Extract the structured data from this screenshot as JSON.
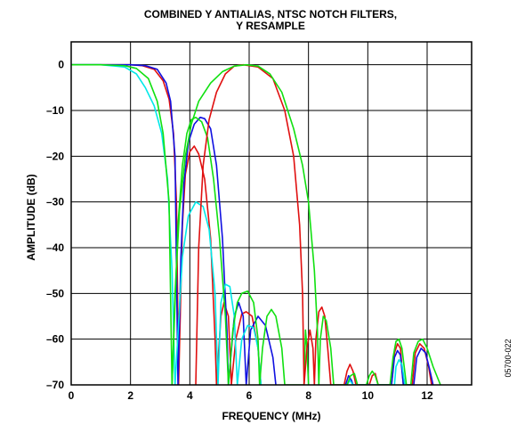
{
  "chart_data": {
    "type": "line",
    "title_lines": [
      "COMBINED Y ANTIALIAS, NTSC NOTCH FILTERS,",
      "Y RESAMPLE"
    ],
    "xlabel": "FREQUENCY (MHz)",
    "ylabel": "AMPLITUDE (dB)",
    "xlim": [
      0,
      13.5
    ],
    "ylim": [
      -70,
      5
    ],
    "xticks": [
      0,
      2,
      4,
      6,
      8,
      10,
      12
    ],
    "xtick_labels": [
      "0",
      "2",
      "4",
      "6",
      "8",
      "10",
      "12"
    ],
    "yticks": [
      0,
      -10,
      -20,
      -30,
      -40,
      -50,
      -60,
      -70
    ],
    "ytick_labels": [
      "0",
      "–10",
      "–20",
      "–30",
      "–40",
      "–50",
      "–60",
      "–70"
    ],
    "grid": true,
    "figure_id": "05700-022",
    "series": [
      {
        "color": "#e01010",
        "points": [
          [
            0,
            0
          ],
          [
            1,
            0
          ],
          [
            2,
            0
          ],
          [
            2.4,
            -0.2
          ],
          [
            2.8,
            -1
          ],
          [
            3.1,
            -3.5
          ],
          [
            3.3,
            -7.5
          ],
          [
            3.45,
            -15
          ],
          [
            3.55,
            -30
          ],
          [
            3.62,
            -70
          ],
          [
            3.75,
            -35
          ],
          [
            3.85,
            -24
          ],
          [
            4,
            -19
          ],
          [
            4.15,
            -17.8
          ],
          [
            4.3,
            -19.5
          ],
          [
            4.5,
            -25
          ],
          [
            4.7,
            -38
          ],
          [
            4.85,
            -60
          ],
          [
            4.9,
            -70
          ],
          [
            5.05,
            -55
          ],
          [
            5.15,
            -52
          ],
          [
            5.3,
            -55
          ],
          [
            5.4,
            -70
          ],
          [
            5.55,
            -60
          ],
          [
            5.75,
            -54.5
          ],
          [
            5.9,
            -54
          ],
          [
            6.1,
            -55
          ],
          [
            6.3,
            -62
          ],
          [
            6.4,
            -70
          ]
        ]
      },
      {
        "color": "#1010e0",
        "points": [
          [
            0,
            0
          ],
          [
            1,
            0
          ],
          [
            2,
            0
          ],
          [
            2.5,
            -0.2
          ],
          [
            2.9,
            -1
          ],
          [
            3.2,
            -4
          ],
          [
            3.35,
            -8
          ],
          [
            3.5,
            -20
          ],
          [
            3.6,
            -70
          ],
          [
            3.7,
            -42
          ],
          [
            3.8,
            -26
          ],
          [
            3.95,
            -17
          ],
          [
            4.15,
            -13
          ],
          [
            4.35,
            -11.5
          ],
          [
            4.5,
            -11.8
          ],
          [
            4.7,
            -14
          ],
          [
            4.9,
            -22
          ],
          [
            5.1,
            -38
          ],
          [
            5.25,
            -58
          ],
          [
            5.3,
            -70
          ],
          [
            5.5,
            -55
          ],
          [
            5.65,
            -52
          ],
          [
            5.8,
            -55
          ],
          [
            5.9,
            -70
          ],
          [
            6.05,
            -58
          ],
          [
            6.3,
            -55
          ],
          [
            6.55,
            -57
          ],
          [
            6.8,
            -64
          ],
          [
            6.9,
            -70
          ]
        ]
      },
      {
        "color": "#00e8e8",
        "points": [
          [
            0,
            0
          ],
          [
            1,
            0
          ],
          [
            1.8,
            -0.5
          ],
          [
            2.2,
            -2
          ],
          [
            2.5,
            -5
          ],
          [
            2.8,
            -9
          ],
          [
            3.05,
            -15
          ],
          [
            3.25,
            -25
          ],
          [
            3.4,
            -45
          ],
          [
            3.5,
            -70
          ],
          [
            3.75,
            -42
          ],
          [
            3.95,
            -33
          ],
          [
            4.2,
            -30
          ],
          [
            4.45,
            -31
          ],
          [
            4.65,
            -36
          ],
          [
            4.85,
            -50
          ],
          [
            4.95,
            -70
          ],
          [
            5.05,
            -52
          ],
          [
            5.2,
            -48
          ],
          [
            5.35,
            -48.5
          ],
          [
            5.5,
            -55
          ],
          [
            5.6,
            -70
          ],
          [
            5.75,
            -60
          ],
          [
            5.95,
            -57
          ],
          [
            6.15,
            -57.5
          ],
          [
            6.3,
            -62
          ],
          [
            6.4,
            -70
          ]
        ]
      },
      {
        "color": "#10e010",
        "points": [
          [
            0,
            0
          ],
          [
            1,
            0
          ],
          [
            1.8,
            -0.2
          ],
          [
            2.2,
            -0.8
          ],
          [
            2.6,
            -3
          ],
          [
            2.9,
            -8
          ],
          [
            3.1,
            -15
          ],
          [
            3.3,
            -30
          ],
          [
            3.4,
            -70
          ],
          [
            3.6,
            -35
          ],
          [
            3.75,
            -22
          ],
          [
            3.9,
            -15
          ],
          [
            4.05,
            -12
          ],
          [
            4.2,
            -11.5
          ],
          [
            4.4,
            -12.5
          ],
          [
            4.6,
            -16
          ],
          [
            4.8,
            -25
          ],
          [
            5,
            -38
          ],
          [
            5.2,
            -55
          ],
          [
            5.3,
            -70
          ],
          [
            5.45,
            -58
          ],
          [
            5.6,
            -52
          ],
          [
            5.75,
            -50
          ],
          [
            5.95,
            -49.5
          ],
          [
            6.15,
            -52
          ],
          [
            6.3,
            -60
          ],
          [
            6.35,
            -70
          ],
          [
            6.45,
            -62
          ],
          [
            6.6,
            -55
          ],
          [
            6.75,
            -53.5
          ],
          [
            6.9,
            -55
          ],
          [
            7.1,
            -62
          ],
          [
            7.2,
            -70
          ],
          [
            7.85,
            -70
          ],
          [
            7.9,
            -58
          ],
          [
            7.95,
            -62
          ],
          [
            8,
            -70
          ]
        ]
      },
      {
        "color": "#e01010",
        "points": [
          [
            4.2,
            -70
          ],
          [
            4.3,
            -40
          ],
          [
            4.45,
            -22
          ],
          [
            4.65,
            -12
          ],
          [
            4.9,
            -6
          ],
          [
            5.2,
            -2
          ],
          [
            5.5,
            -0.3
          ],
          [
            5.8,
            0
          ],
          [
            6.3,
            -0.5
          ],
          [
            6.8,
            -3
          ],
          [
            7.2,
            -10
          ],
          [
            7.5,
            -20
          ],
          [
            7.7,
            -35
          ],
          [
            7.8,
            -50
          ],
          [
            7.85,
            -70
          ],
          [
            7.95,
            -62
          ],
          [
            8.05,
            -58
          ],
          [
            8.15,
            -62
          ],
          [
            8.2,
            -70
          ],
          [
            8.25,
            -60
          ],
          [
            8.35,
            -54
          ],
          [
            8.45,
            -53
          ],
          [
            8.55,
            -55
          ],
          [
            8.65,
            -62
          ],
          [
            8.75,
            -70
          ],
          [
            9.2,
            -70
          ],
          [
            9.3,
            -67
          ],
          [
            9.4,
            -65.5
          ],
          [
            9.5,
            -67
          ],
          [
            9.6,
            -70
          ],
          [
            10.05,
            -70
          ],
          [
            10.15,
            -68
          ],
          [
            10.25,
            -67.5
          ],
          [
            10.35,
            -70
          ],
          [
            10.8,
            -70
          ],
          [
            10.9,
            -63
          ],
          [
            11,
            -61
          ],
          [
            11.1,
            -62
          ],
          [
            11.2,
            -70
          ],
          [
            11.5,
            -70
          ],
          [
            11.6,
            -63
          ],
          [
            11.75,
            -61
          ],
          [
            11.9,
            -62
          ],
          [
            12.05,
            -66
          ],
          [
            12.15,
            -70
          ]
        ]
      },
      {
        "color": "#1010e0",
        "points": [
          [
            9.25,
            -70
          ],
          [
            9.35,
            -68
          ],
          [
            9.45,
            -69
          ],
          [
            9.5,
            -70
          ],
          [
            10.8,
            -70
          ],
          [
            10.9,
            -64
          ],
          [
            11,
            -62.5
          ],
          [
            11.1,
            -63.5
          ],
          [
            11.2,
            -70
          ],
          [
            11.55,
            -70
          ],
          [
            11.65,
            -64
          ],
          [
            11.8,
            -62
          ],
          [
            11.95,
            -63
          ],
          [
            12.1,
            -67
          ],
          [
            12.2,
            -70
          ]
        ]
      },
      {
        "color": "#00e8e8",
        "points": [
          [
            9.3,
            -70
          ],
          [
            9.4,
            -69
          ],
          [
            9.5,
            -70
          ],
          [
            10.9,
            -70
          ],
          [
            10.95,
            -66
          ],
          [
            11.05,
            -64.5
          ],
          [
            11.15,
            -65.5
          ],
          [
            11.25,
            -70
          ]
        ]
      },
      {
        "color": "#10e010",
        "points": [
          [
            3.4,
            -70
          ],
          [
            3.5,
            -50
          ],
          [
            3.65,
            -32
          ],
          [
            3.85,
            -20
          ],
          [
            4.05,
            -13
          ],
          [
            4.3,
            -8
          ],
          [
            4.7,
            -4
          ],
          [
            5.1,
            -1.5
          ],
          [
            5.5,
            -0.3
          ],
          [
            5.9,
            0
          ],
          [
            6.3,
            -0.3
          ],
          [
            6.7,
            -2
          ],
          [
            7.1,
            -6
          ],
          [
            7.5,
            -14
          ],
          [
            7.8,
            -22
          ],
          [
            8,
            -30
          ],
          [
            8.2,
            -45
          ],
          [
            8.3,
            -58
          ],
          [
            8.35,
            -70
          ],
          [
            8.4,
            -60
          ],
          [
            8.5,
            -55
          ],
          [
            8.6,
            -56
          ],
          [
            8.75,
            -62
          ],
          [
            8.85,
            -70
          ],
          [
            9.3,
            -70
          ],
          [
            9.42,
            -68
          ],
          [
            9.55,
            -67.5
          ],
          [
            9.65,
            -70
          ],
          [
            9.95,
            -70
          ],
          [
            10.05,
            -68
          ],
          [
            10.15,
            -67
          ],
          [
            10.25,
            -68
          ],
          [
            10.35,
            -70
          ],
          [
            10.75,
            -70
          ],
          [
            10.85,
            -64
          ],
          [
            10.95,
            -60.5
          ],
          [
            11.05,
            -60
          ],
          [
            11.15,
            -62
          ],
          [
            11.3,
            -70
          ],
          [
            11.45,
            -70
          ],
          [
            11.55,
            -63
          ],
          [
            11.7,
            -60.5
          ],
          [
            11.85,
            -60
          ],
          [
            12,
            -62
          ],
          [
            12.2,
            -66
          ],
          [
            12.45,
            -70
          ]
        ]
      }
    ]
  }
}
